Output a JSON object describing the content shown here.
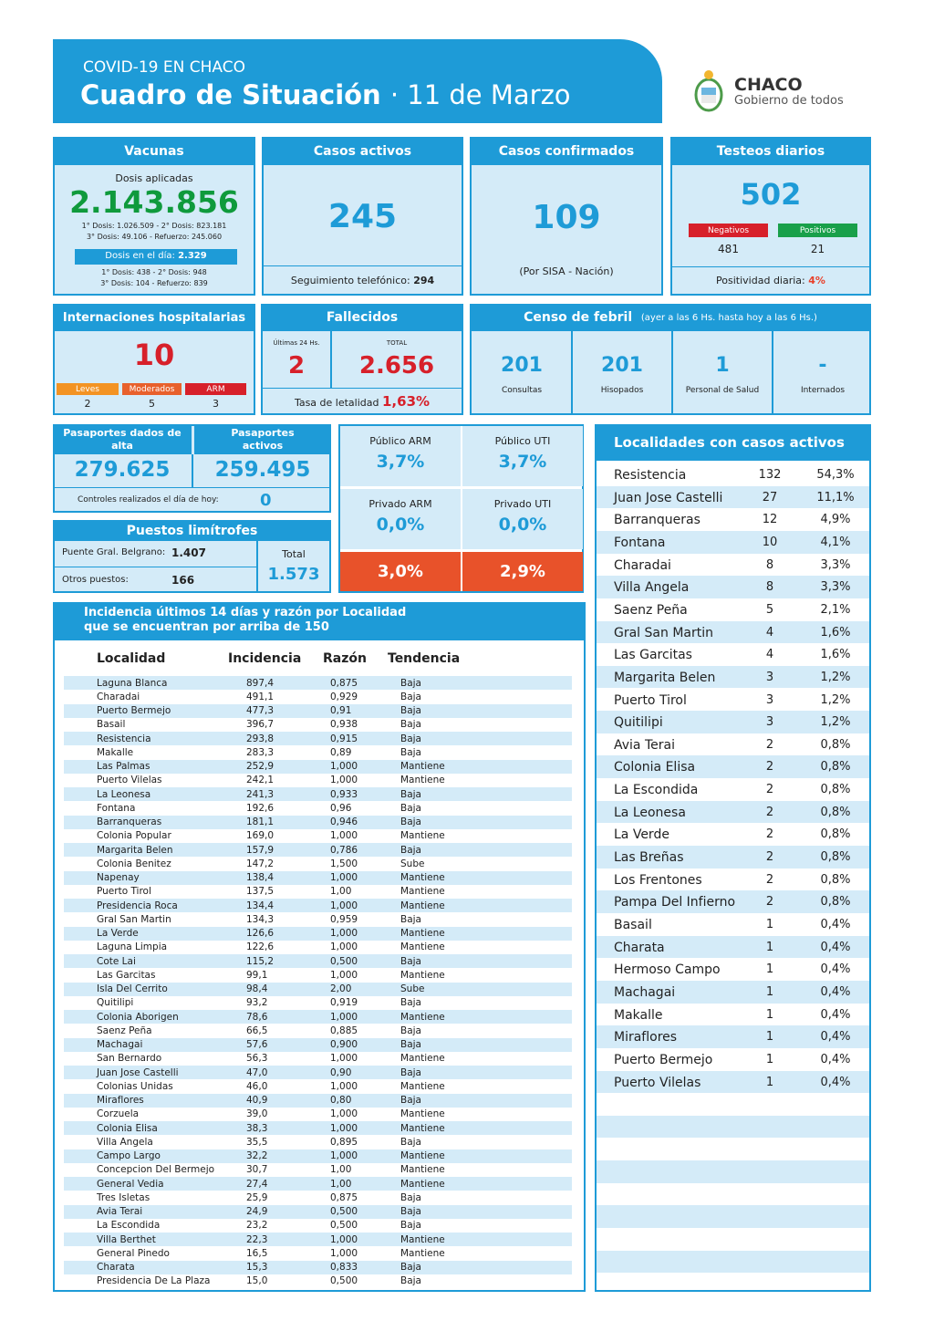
{
  "header": {
    "kicker": "COVID-19 EN CHACO",
    "title": "Cuadro de Situación",
    "date": "· 11 de Marzo",
    "logo_name": "CHACO",
    "logo_tagline": "Gobierno de todos"
  },
  "vacunas": {
    "title": "Vacunas",
    "label": "Dosis aplicadas",
    "total": "2.143.856",
    "line1": "1° Dosis: 1.026.509  -  2° Dosis: 823.181",
    "line2": "3° Dosis: 49.106  -  Refuerzo: 245.060",
    "day_label": "Dosis en el día:",
    "day_value": "2.329",
    "day_line1": "1° Dosis: 438  -  2° Dosis: 948",
    "day_line2": "3° Dosis: 104  -  Refuerzo: 839"
  },
  "activos": {
    "title": "Casos activos",
    "value": "245",
    "note_label": "Seguimiento telefónico:",
    "note_value": "294"
  },
  "confirmados": {
    "title": "Casos confirmados",
    "value": "109",
    "note": "(Por SISA - Nación)"
  },
  "testeos": {
    "title": "Testeos diarios",
    "value": "502",
    "neg_label": "Negativos",
    "neg": "481",
    "pos_label": "Positivos",
    "pos": "21",
    "rate_label": "Positividad diaria:",
    "rate": "4%"
  },
  "internaciones": {
    "title": "Internaciones hospitalarias",
    "value": "10",
    "levels": [
      {
        "label": "Leves",
        "value": "2"
      },
      {
        "label": "Moderados",
        "value": "5"
      },
      {
        "label": "ARM",
        "value": "3"
      }
    ]
  },
  "fallecidos": {
    "title": "Fallecidos",
    "last_label": "Últimas 24 Hs.",
    "last": "2",
    "total_label": "TOTAL",
    "total": "2.656",
    "rate_label": "Tasa de letalidad",
    "rate": "1,63%"
  },
  "censo": {
    "title": "Censo de febril",
    "subtitle": "(ayer a las 6 Hs. hasta hoy a las 6 Hs.)",
    "items": [
      {
        "value": "201",
        "label": "Consultas"
      },
      {
        "value": "201",
        "label": "Hisopados"
      },
      {
        "value": "1",
        "label": "Personal de Salud"
      },
      {
        "value": "-",
        "label": "Internados"
      }
    ]
  },
  "pasaportes": {
    "alta_label": "Pasaportes dados de alta",
    "alta": "279.625",
    "activos_label": "Pasaportes activos",
    "activos": "259.495",
    "controles_label": "Controles realizados el día de hoy:",
    "controles": "0"
  },
  "puestos": {
    "title": "Puestos limítrofes",
    "rows": [
      {
        "label": "Puente Gral. Belgrano:",
        "value": "1.407"
      },
      {
        "label": "Otros puestos:",
        "value": "166"
      }
    ],
    "total_label": "Total",
    "total": "1.573"
  },
  "ocupacion": {
    "cells": [
      {
        "label": "Público ARM",
        "value": "3,7%"
      },
      {
        "label": "Público UTI",
        "value": "3,7%"
      },
      {
        "label": "Privado ARM",
        "value": "0,0%"
      },
      {
        "label": "Privado UTI",
        "value": "0,0%"
      }
    ],
    "totals": [
      "3,0%",
      "2,9%"
    ]
  },
  "incidencia": {
    "title_line1": "Incidencia últimos 14 días y razón por Localidad",
    "title_line2": "que se encuentran por arriba de 150",
    "columns": [
      "Localidad",
      "Incidencia",
      "Razón",
      "Tendencia"
    ],
    "rows": [
      [
        "Laguna Blanca",
        "897,4",
        "0,875",
        "Baja"
      ],
      [
        "Charadai",
        "491,1",
        "0,929",
        "Baja"
      ],
      [
        "Puerto Bermejo",
        "477,3",
        "0,91",
        "Baja"
      ],
      [
        "Basail",
        "396,7",
        "0,938",
        "Baja"
      ],
      [
        "Resistencia",
        "293,8",
        "0,915",
        "Baja"
      ],
      [
        "Makalle",
        "283,3",
        "0,89",
        "Baja"
      ],
      [
        "Las Palmas",
        "252,9",
        "1,000",
        "Mantiene"
      ],
      [
        "Puerto Vilelas",
        "242,1",
        "1,000",
        "Mantiene"
      ],
      [
        "La Leonesa",
        "241,3",
        "0,933",
        "Baja"
      ],
      [
        "Fontana",
        "192,6",
        "0,96",
        "Baja"
      ],
      [
        "Barranqueras",
        "181,1",
        "0,946",
        "Baja"
      ],
      [
        "Colonia Popular",
        "169,0",
        "1,000",
        "Mantiene"
      ],
      [
        "Margarita Belen",
        "157,9",
        "0,786",
        "Baja"
      ],
      [
        "Colonia Benitez",
        "147,2",
        "1,500",
        "Sube"
      ],
      [
        "Napenay",
        "138,4",
        "1,000",
        "Mantiene"
      ],
      [
        "Puerto Tirol",
        "137,5",
        "1,00",
        "Mantiene"
      ],
      [
        "Presidencia Roca",
        "134,4",
        "1,000",
        "Mantiene"
      ],
      [
        "Gral San Martin",
        "134,3",
        "0,959",
        "Baja"
      ],
      [
        "La Verde",
        "126,6",
        "1,000",
        "Mantiene"
      ],
      [
        "Laguna Limpia",
        "122,6",
        "1,000",
        "Mantiene"
      ],
      [
        "Cote Lai",
        "115,2",
        "0,500",
        "Baja"
      ],
      [
        "Las Garcitas",
        "99,1",
        "1,000",
        "Mantiene"
      ],
      [
        "Isla Del Cerrito",
        "98,4",
        "2,00",
        "Sube"
      ],
      [
        "Quitilipi",
        "93,2",
        "0,919",
        "Baja"
      ],
      [
        "Colonia Aborigen",
        "78,6",
        "1,000",
        "Mantiene"
      ],
      [
        "Saenz Peña",
        "66,5",
        "0,885",
        "Baja"
      ],
      [
        "Machagai",
        "57,6",
        "0,900",
        "Baja"
      ],
      [
        "San Bernardo",
        "56,3",
        "1,000",
        "Mantiene"
      ],
      [
        "Juan Jose Castelli",
        "47,0",
        "0,90",
        "Baja"
      ],
      [
        "Colonias Unidas",
        "46,0",
        "1,000",
        "Mantiene"
      ],
      [
        "Miraflores",
        "40,9",
        "0,80",
        "Baja"
      ],
      [
        "Corzuela",
        "39,0",
        "1,000",
        "Mantiene"
      ],
      [
        "Colonia Elisa",
        "38,3",
        "1,000",
        "Mantiene"
      ],
      [
        "Villa Angela",
        "35,5",
        "0,895",
        "Baja"
      ],
      [
        "Campo Largo",
        "32,2",
        "1,000",
        "Mantiene"
      ],
      [
        "Concepcion Del Bermejo",
        "30,7",
        "1,00",
        "Mantiene"
      ],
      [
        "General Vedia",
        "27,4",
        "1,00",
        "Mantiene"
      ],
      [
        "Tres Isletas",
        "25,9",
        "0,875",
        "Baja"
      ],
      [
        "Avia Terai",
        "24,9",
        "0,500",
        "Baja"
      ],
      [
        "La Escondida",
        "23,2",
        "0,500",
        "Baja"
      ],
      [
        "Villa Berthet",
        "22,3",
        "1,000",
        "Mantiene"
      ],
      [
        "General Pinedo",
        "16,5",
        "1,000",
        "Mantiene"
      ],
      [
        "Charata",
        "15,3",
        "0,833",
        "Baja"
      ],
      [
        "Presidencia De La Plaza",
        "15,0",
        "0,500",
        "Baja"
      ]
    ]
  },
  "localidades": {
    "title": "Localidades con casos activos",
    "rows": [
      [
        "Resistencia",
        "132",
        "54,3%"
      ],
      [
        "Juan Jose Castelli",
        "27",
        "11,1%"
      ],
      [
        "Barranqueras",
        "12",
        "4,9%"
      ],
      [
        "Fontana",
        "10",
        "4,1%"
      ],
      [
        "Charadai",
        "8",
        "3,3%"
      ],
      [
        "Villa Angela",
        "8",
        "3,3%"
      ],
      [
        "Saenz Peña",
        "5",
        "2,1%"
      ],
      [
        "Gral San Martin",
        "4",
        "1,6%"
      ],
      [
        "Las Garcitas",
        "4",
        "1,6%"
      ],
      [
        "Margarita Belen",
        "3",
        "1,2%"
      ],
      [
        "Puerto Tirol",
        "3",
        "1,2%"
      ],
      [
        "Quitilipi",
        "3",
        "1,2%"
      ],
      [
        "Avia Terai",
        "2",
        "0,8%"
      ],
      [
        "Colonia Elisa",
        "2",
        "0,8%"
      ],
      [
        "La Escondida",
        "2",
        "0,8%"
      ],
      [
        "La Leonesa",
        "2",
        "0,8%"
      ],
      [
        "La Verde",
        "2",
        "0,8%"
      ],
      [
        "Las Breñas",
        "2",
        "0,8%"
      ],
      [
        "Los Frentones",
        "2",
        "0,8%"
      ],
      [
        "Pampa Del Infierno",
        "2",
        "0,8%"
      ],
      [
        "Basail",
        "1",
        "0,4%"
      ],
      [
        "Charata",
        "1",
        "0,4%"
      ],
      [
        "Hermoso Campo",
        "1",
        "0,4%"
      ],
      [
        "Machagai",
        "1",
        "0,4%"
      ],
      [
        "Makalle",
        "1",
        "0,4%"
      ],
      [
        "Miraflores",
        "1",
        "0,4%"
      ],
      [
        "Puerto Bermejo",
        "1",
        "0,4%"
      ],
      [
        "Puerto Vilelas",
        "1",
        "0,4%"
      ]
    ]
  }
}
